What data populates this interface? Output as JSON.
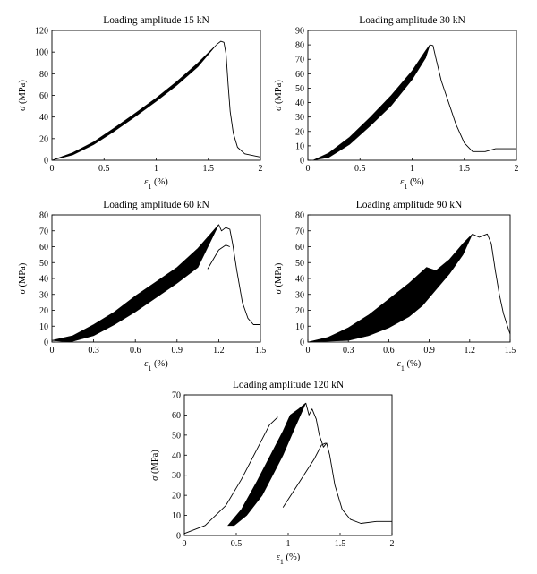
{
  "chart_data": [
    {
      "type": "line",
      "title": "Loading amplitude 15 kN",
      "xlabel": "ε1 (%)",
      "ylabel": "σ (MPa)",
      "xlim": [
        0,
        2
      ],
      "ylim": [
        0,
        120
      ],
      "xticks": [
        0,
        0.5,
        1,
        1.5,
        2
      ],
      "xtick_labels": [
        "0",
        "0.5",
        "1",
        "1.5",
        "2"
      ],
      "yticks": [
        0,
        20,
        40,
        60,
        80,
        100,
        120
      ],
      "ytick_labels": [
        "0",
        "20",
        "40",
        "60",
        "80",
        "100",
        "120"
      ],
      "grid": false,
      "legend": false,
      "band_upper": [
        [
          0,
          0
        ],
        [
          0.2,
          7
        ],
        [
          0.4,
          17
        ],
        [
          0.6,
          30
        ],
        [
          0.8,
          43.5
        ],
        [
          1.0,
          57.5
        ],
        [
          1.2,
          73
        ],
        [
          1.4,
          90
        ],
        [
          1.58,
          107
        ]
      ],
      "band_lower": [
        [
          1.58,
          107
        ],
        [
          1.4,
          86.5
        ],
        [
          1.2,
          69.5
        ],
        [
          1.0,
          54.5
        ],
        [
          0.8,
          40.5
        ],
        [
          0.6,
          27
        ],
        [
          0.4,
          14.5
        ],
        [
          0.2,
          5
        ],
        [
          0,
          0
        ]
      ],
      "envelope": [
        [
          1.58,
          107
        ],
        [
          1.62,
          110
        ],
        [
          1.65,
          109
        ],
        [
          1.67,
          98
        ],
        [
          1.69,
          70
        ],
        [
          1.71,
          45
        ],
        [
          1.74,
          25
        ],
        [
          1.78,
          12
        ],
        [
          1.85,
          6
        ],
        [
          2.0,
          3
        ]
      ]
    },
    {
      "type": "line",
      "title": "Loading amplitude 30 kN",
      "xlabel": "ε1 (%)",
      "ylabel": "σ (MPa)",
      "xlim": [
        0,
        2
      ],
      "ylim": [
        0,
        90
      ],
      "xticks": [
        0,
        0.5,
        1,
        1.5,
        2
      ],
      "xtick_labels": [
        "0",
        "0.5",
        "1",
        "1.5",
        "2"
      ],
      "yticks": [
        0,
        10,
        20,
        30,
        40,
        50,
        60,
        70,
        80,
        90
      ],
      "ytick_labels": [
        "0",
        "10",
        "20",
        "30",
        "40",
        "50",
        "60",
        "70",
        "80",
        "90"
      ],
      "grid": false,
      "legend": false,
      "band_upper": [
        [
          0.05,
          0
        ],
        [
          0.2,
          5
        ],
        [
          0.4,
          16
        ],
        [
          0.6,
          30
        ],
        [
          0.8,
          45
        ],
        [
          1.0,
          62
        ],
        [
          1.13,
          76
        ],
        [
          1.17,
          80
        ]
      ],
      "band_lower": [
        [
          1.17,
          80
        ],
        [
          1.13,
          71
        ],
        [
          1.0,
          56
        ],
        [
          0.8,
          38
        ],
        [
          0.6,
          24
        ],
        [
          0.4,
          11
        ],
        [
          0.2,
          2
        ],
        [
          0.05,
          0
        ]
      ],
      "envelope": [
        [
          1.17,
          80
        ],
        [
          1.2,
          79.5
        ],
        [
          1.23,
          70
        ],
        [
          1.28,
          55
        ],
        [
          1.35,
          40
        ],
        [
          1.42,
          25
        ],
        [
          1.5,
          12
        ],
        [
          1.58,
          6
        ],
        [
          1.7,
          6
        ],
        [
          1.8,
          8
        ],
        [
          2.0,
          8
        ]
      ]
    },
    {
      "type": "line",
      "title": "Loading amplitude 60 kN",
      "xlabel": "ε1 (%)",
      "ylabel": "σ (MPa)",
      "xlim": [
        0,
        1.5
      ],
      "ylim": [
        0,
        80
      ],
      "xticks": [
        0,
        0.3,
        0.6,
        0.9,
        1.2,
        1.5
      ],
      "xtick_labels": [
        "0",
        "0.3",
        "0.6",
        "0.9",
        "1.2",
        "1.5"
      ],
      "yticks": [
        0,
        10,
        20,
        30,
        40,
        50,
        60,
        70,
        80
      ],
      "ytick_labels": [
        "0",
        "10",
        "20",
        "30",
        "40",
        "50",
        "60",
        "70",
        "80"
      ],
      "grid": false,
      "legend": false,
      "band_upper": [
        [
          0.0,
          1
        ],
        [
          0.15,
          4
        ],
        [
          0.3,
          11
        ],
        [
          0.45,
          19
        ],
        [
          0.6,
          29
        ],
        [
          0.75,
          38
        ],
        [
          0.9,
          47
        ],
        [
          1.05,
          59
        ],
        [
          1.2,
          74
        ]
      ],
      "band_lower": [
        [
          1.2,
          74
        ],
        [
          1.05,
          47
        ],
        [
          0.9,
          37
        ],
        [
          0.75,
          28
        ],
        [
          0.6,
          19
        ],
        [
          0.45,
          11
        ],
        [
          0.3,
          4
        ],
        [
          0.13,
          0
        ],
        [
          0.0,
          1
        ]
      ],
      "envelope": [
        [
          1.2,
          74
        ],
        [
          1.22,
          70
        ],
        [
          1.25,
          72
        ],
        [
          1.28,
          71
        ],
        [
          1.3,
          62
        ],
        [
          1.33,
          45
        ],
        [
          1.37,
          25
        ],
        [
          1.41,
          15
        ],
        [
          1.45,
          11
        ],
        [
          1.5,
          11
        ]
      ],
      "drop": [
        [
          1.12,
          46
        ],
        [
          1.2,
          58
        ],
        [
          1.25,
          61
        ],
        [
          1.28,
          60
        ]
      ]
    },
    {
      "type": "line",
      "title": "Loading amplitude 90 kN",
      "xlabel": "ε1 (%)",
      "ylabel": "σ (MPa)",
      "xlim": [
        0,
        1.5
      ],
      "ylim": [
        0,
        80
      ],
      "xticks": [
        0,
        0.3,
        0.6,
        0.9,
        1.2,
        1.5
      ],
      "xtick_labels": [
        "0",
        "0.3",
        "0.6",
        "0.9",
        "1.2",
        "1.5"
      ],
      "yticks": [
        0,
        10,
        20,
        30,
        40,
        50,
        60,
        70,
        80
      ],
      "ytick_labels": [
        "0",
        "10",
        "20",
        "30",
        "40",
        "50",
        "60",
        "70",
        "80"
      ],
      "grid": false,
      "legend": false,
      "band_upper": [
        [
          0.0,
          0
        ],
        [
          0.15,
          3
        ],
        [
          0.3,
          9
        ],
        [
          0.45,
          17
        ],
        [
          0.6,
          27
        ],
        [
          0.75,
          37
        ],
        [
          0.88,
          47
        ],
        [
          0.95,
          45
        ],
        [
          1.05,
          52
        ],
        [
          1.15,
          62
        ],
        [
          1.22,
          68
        ]
      ],
      "band_lower": [
        [
          1.22,
          68
        ],
        [
          1.15,
          55
        ],
        [
          1.05,
          43
        ],
        [
          0.95,
          33
        ],
        [
          0.85,
          23
        ],
        [
          0.75,
          16
        ],
        [
          0.6,
          9
        ],
        [
          0.45,
          4
        ],
        [
          0.3,
          1
        ],
        [
          0.0,
          0
        ]
      ],
      "envelope": [
        [
          1.22,
          68
        ],
        [
          1.27,
          66
        ],
        [
          1.3,
          67
        ],
        [
          1.33,
          68
        ],
        [
          1.36,
          62
        ],
        [
          1.39,
          45
        ],
        [
          1.42,
          30
        ],
        [
          1.45,
          18
        ],
        [
          1.48,
          10
        ],
        [
          1.5,
          5
        ]
      ]
    },
    {
      "type": "line",
      "title": "Loading amplitude 120 kN",
      "xlabel": "ε1 (%)",
      "ylabel": "σ (MPa)",
      "xlim": [
        0,
        2
      ],
      "ylim": [
        0,
        70
      ],
      "xticks": [
        0,
        0.5,
        1,
        1.5,
        2
      ],
      "xtick_labels": [
        "0",
        "0.5",
        "1",
        "1.5",
        "2"
      ],
      "yticks": [
        0,
        10,
        20,
        30,
        40,
        50,
        60,
        70
      ],
      "ytick_labels": [
        "0",
        "10",
        "20",
        "30",
        "40",
        "50",
        "60",
        "70"
      ],
      "grid": false,
      "legend": false,
      "band_upper": [
        [
          0.42,
          5
        ],
        [
          0.55,
          13
        ],
        [
          0.7,
          27
        ],
        [
          0.85,
          42
        ],
        [
          0.95,
          52
        ],
        [
          1.02,
          60
        ],
        [
          1.1,
          63
        ],
        [
          1.17,
          66
        ]
      ],
      "band_lower": [
        [
          1.17,
          66
        ],
        [
          1.05,
          52
        ],
        [
          0.95,
          40
        ],
        [
          0.85,
          30
        ],
        [
          0.75,
          20
        ],
        [
          0.6,
          10
        ],
        [
          0.48,
          5
        ],
        [
          0.42,
          5
        ]
      ],
      "loading_curve": [
        [
          0,
          1
        ],
        [
          0.2,
          5
        ],
        [
          0.4,
          15
        ],
        [
          0.55,
          28
        ],
        [
          0.7,
          43
        ],
        [
          0.82,
          55
        ],
        [
          0.9,
          59
        ]
      ],
      "envelope": [
        [
          1.17,
          66
        ],
        [
          1.2,
          60
        ],
        [
          1.23,
          63
        ],
        [
          1.27,
          58
        ],
        [
          1.3,
          50
        ],
        [
          1.34,
          44
        ],
        [
          1.37,
          46
        ],
        [
          1.4,
          40
        ],
        [
          1.45,
          25
        ],
        [
          1.52,
          13
        ],
        [
          1.6,
          8
        ],
        [
          1.7,
          6
        ],
        [
          1.85,
          7
        ],
        [
          2.0,
          7
        ]
      ],
      "unload": [
        [
          0.95,
          14
        ],
        [
          1.05,
          22
        ],
        [
          1.15,
          30
        ],
        [
          1.25,
          38
        ],
        [
          1.32,
          45
        ],
        [
          1.36,
          46
        ]
      ]
    }
  ]
}
